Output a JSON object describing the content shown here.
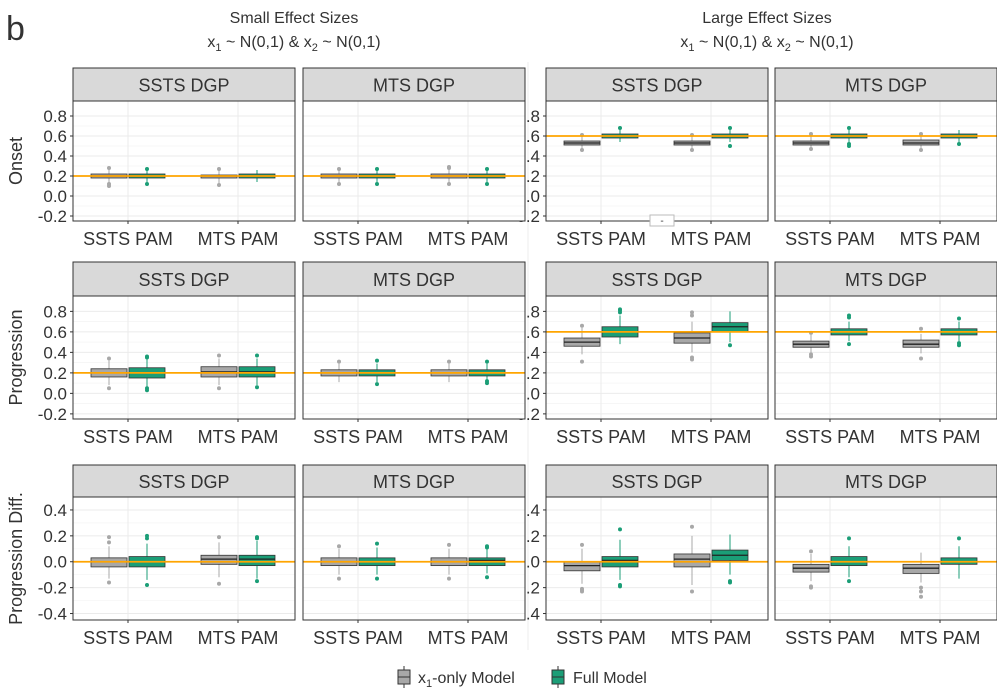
{
  "panel_letter": "b",
  "group_titles": [
    {
      "line1": "Small Effect Sizes",
      "x1": "x",
      "x1_sub": "1",
      "x1_tail": " ~ N(0,1) & ",
      "x2": "x",
      "x2_sub": "2",
      "x2_tail": " ~ N(0,1)"
    },
    {
      "line1": "Large Effect Sizes",
      "x1": "x",
      "x1_sub": "1",
      "x1_tail": " ~ N(0,1) & ",
      "x2": "x",
      "x2_sub": "2",
      "x2_tail": " ~ N(0,1)"
    }
  ],
  "legend": {
    "items": [
      {
        "label_main": "x",
        "label_sub": "1",
        "label_tail": "-only Model",
        "color": "#a8a8a8"
      },
      {
        "label_main": "Full Model",
        "label_sub": "",
        "label_tail": "",
        "color": "#1b9e77"
      }
    ]
  },
  "stray_mark": "-",
  "colors": {
    "x1_only": "#a8a8a8",
    "full": "#1b9e77",
    "reference": "#ffa500",
    "strip": "#d9d9d9"
  },
  "chart_data": {
    "type": "boxplot",
    "categories": [
      "SSTS PAM",
      "MTS PAM"
    ],
    "series": [
      "x1-only Model",
      "Full Model"
    ],
    "rows": [
      {
        "ylabel": "Onset",
        "ylim": [
          -0.25,
          0.95
        ],
        "ticks": [
          -0.2,
          0.0,
          0.2,
          0.4,
          0.6,
          0.8
        ]
      },
      {
        "ylabel": "Progression",
        "ylim": [
          -0.25,
          0.95
        ],
        "ticks": [
          -0.2,
          0.0,
          0.2,
          0.4,
          0.6,
          0.8
        ]
      },
      {
        "ylabel": "Progression Diff.",
        "ylim": [
          -0.45,
          0.5
        ],
        "ticks": [
          -0.4,
          -0.2,
          0.0,
          0.2,
          0.4
        ]
      }
    ],
    "tick_labels": {
      "Onset": [
        "-0.2",
        "0.0",
        "0.2",
        "0.4",
        "0.6",
        "0.8"
      ],
      "Progression": [
        "-0.2",
        "0.0",
        "0.2",
        "0.4",
        "0.6",
        "0.8"
      ],
      "Progression Diff.": [
        "-0.4",
        "-0.2",
        "0.0",
        "0.2",
        "0.4"
      ]
    },
    "panels": [
      {
        "row": 0,
        "col": 0,
        "strip": "SSTS DGP",
        "ref": 0.2,
        "boxes": [
          {
            "q1": 0.18,
            "med": 0.2,
            "q3": 0.22,
            "lo": 0.13,
            "hi": 0.27,
            "out": [
              0.1,
              0.28,
              0.12
            ]
          },
          {
            "q1": 0.18,
            "med": 0.2,
            "q3": 0.22,
            "lo": 0.14,
            "hi": 0.26,
            "out": [
              0.12,
              0.27
            ]
          },
          {
            "q1": 0.18,
            "med": 0.2,
            "q3": 0.21,
            "lo": 0.13,
            "hi": 0.26,
            "out": [
              0.11,
              0.27
            ]
          },
          {
            "q1": 0.18,
            "med": 0.2,
            "q3": 0.22,
            "lo": 0.14,
            "hi": 0.26,
            "out": []
          }
        ]
      },
      {
        "row": 0,
        "col": 1,
        "strip": "MTS DGP",
        "ref": 0.2,
        "boxes": [
          {
            "q1": 0.18,
            "med": 0.2,
            "q3": 0.22,
            "lo": 0.13,
            "hi": 0.26,
            "out": [
              0.12,
              0.27
            ]
          },
          {
            "q1": 0.18,
            "med": 0.2,
            "q3": 0.22,
            "lo": 0.14,
            "hi": 0.26,
            "out": [
              0.12,
              0.27
            ]
          },
          {
            "q1": 0.18,
            "med": 0.2,
            "q3": 0.22,
            "lo": 0.13,
            "hi": 0.27,
            "out": [
              0.12,
              0.28,
              0.29
            ]
          },
          {
            "q1": 0.18,
            "med": 0.2,
            "q3": 0.22,
            "lo": 0.14,
            "hi": 0.26,
            "out": [
              0.12,
              0.27
            ]
          }
        ]
      },
      {
        "row": 0,
        "col": 2,
        "strip": "SSTS DGP",
        "ref": 0.6,
        "boxes": [
          {
            "q1": 0.51,
            "med": 0.53,
            "q3": 0.55,
            "lo": 0.47,
            "hi": 0.6,
            "out": [
              0.46,
              0.61
            ]
          },
          {
            "q1": 0.58,
            "med": 0.6,
            "q3": 0.62,
            "lo": 0.54,
            "hi": 0.66,
            "out": [
              0.68
            ]
          },
          {
            "q1": 0.51,
            "med": 0.53,
            "q3": 0.55,
            "lo": 0.47,
            "hi": 0.6,
            "out": [
              0.46,
              0.61
            ]
          },
          {
            "q1": 0.58,
            "med": 0.6,
            "q3": 0.62,
            "lo": 0.54,
            "hi": 0.66,
            "out": [
              0.5,
              0.68
            ]
          }
        ]
      },
      {
        "row": 0,
        "col": 3,
        "strip": "MTS DGP",
        "ref": 0.6,
        "boxes": [
          {
            "q1": 0.51,
            "med": 0.53,
            "q3": 0.55,
            "lo": 0.47,
            "hi": 0.6,
            "out": [
              0.47,
              0.62
            ]
          },
          {
            "q1": 0.58,
            "med": 0.6,
            "q3": 0.62,
            "lo": 0.54,
            "hi": 0.66,
            "out": [
              0.52,
              0.5,
              0.68
            ]
          },
          {
            "q1": 0.51,
            "med": 0.53,
            "q3": 0.56,
            "lo": 0.47,
            "hi": 0.6,
            "out": [
              0.46,
              0.62
            ]
          },
          {
            "q1": 0.58,
            "med": 0.6,
            "q3": 0.62,
            "lo": 0.54,
            "hi": 0.66,
            "out": [
              0.52
            ]
          }
        ]
      },
      {
        "row": 1,
        "col": 0,
        "strip": "SSTS DGP",
        "ref": 0.2,
        "boxes": [
          {
            "q1": 0.16,
            "med": 0.2,
            "q3": 0.24,
            "lo": 0.08,
            "hi": 0.32,
            "out": [
              0.05,
              0.34
            ]
          },
          {
            "q1": 0.15,
            "med": 0.2,
            "q3": 0.25,
            "lo": 0.06,
            "hi": 0.33,
            "out": [
              0.03,
              0.05,
              0.35,
              0.36
            ]
          },
          {
            "q1": 0.16,
            "med": 0.21,
            "q3": 0.26,
            "lo": 0.08,
            "hi": 0.34,
            "out": [
              0.05,
              0.37
            ]
          },
          {
            "q1": 0.16,
            "med": 0.21,
            "q3": 0.26,
            "lo": 0.08,
            "hi": 0.34,
            "out": [
              0.06,
              0.37
            ]
          }
        ]
      },
      {
        "row": 1,
        "col": 1,
        "strip": "MTS DGP",
        "ref": 0.2,
        "boxes": [
          {
            "q1": 0.17,
            "med": 0.2,
            "q3": 0.23,
            "lo": 0.11,
            "hi": 0.29,
            "out": [
              0.31
            ]
          },
          {
            "q1": 0.17,
            "med": 0.2,
            "q3": 0.23,
            "lo": 0.11,
            "hi": 0.29,
            "out": [
              0.09,
              0.32
            ]
          },
          {
            "q1": 0.17,
            "med": 0.2,
            "q3": 0.23,
            "lo": 0.11,
            "hi": 0.29,
            "out": [
              0.31
            ]
          },
          {
            "q1": 0.17,
            "med": 0.2,
            "q3": 0.23,
            "lo": 0.11,
            "hi": 0.29,
            "out": [
              0.1,
              0.12,
              0.31
            ]
          }
        ]
      },
      {
        "row": 1,
        "col": 2,
        "strip": "SSTS DGP",
        "ref": 0.6,
        "boxes": [
          {
            "q1": 0.46,
            "med": 0.5,
            "q3": 0.54,
            "lo": 0.38,
            "hi": 0.64,
            "out": [
              0.31,
              0.66
            ]
          },
          {
            "q1": 0.55,
            "med": 0.6,
            "q3": 0.65,
            "lo": 0.48,
            "hi": 0.76,
            "out": [
              0.79,
              0.81,
              0.82
            ]
          },
          {
            "q1": 0.49,
            "med": 0.54,
            "q3": 0.59,
            "lo": 0.4,
            "hi": 0.7,
            "out": [
              0.33,
              0.35,
              0.76,
              0.79
            ]
          },
          {
            "q1": 0.6,
            "med": 0.65,
            "q3": 0.69,
            "lo": 0.5,
            "hi": 0.8,
            "out": [
              0.47
            ]
          }
        ]
      },
      {
        "row": 1,
        "col": 3,
        "strip": "MTS DGP",
        "ref": 0.6,
        "boxes": [
          {
            "q1": 0.45,
            "med": 0.48,
            "q3": 0.51,
            "lo": 0.4,
            "hi": 0.57,
            "out": [
              0.36,
              0.38,
              0.59
            ]
          },
          {
            "q1": 0.57,
            "med": 0.6,
            "q3": 0.63,
            "lo": 0.51,
            "hi": 0.7,
            "out": [
              0.48,
              0.74,
              0.76
            ]
          },
          {
            "q1": 0.45,
            "med": 0.48,
            "q3": 0.52,
            "lo": 0.39,
            "hi": 0.58,
            "out": [
              0.34,
              0.63
            ]
          },
          {
            "q1": 0.57,
            "med": 0.6,
            "q3": 0.63,
            "lo": 0.51,
            "hi": 0.7,
            "out": [
              0.47,
              0.49,
              0.73
            ]
          }
        ]
      },
      {
        "row": 2,
        "col": 0,
        "strip": "SSTS DGP",
        "ref": 0.0,
        "boxes": [
          {
            "q1": -0.04,
            "med": 0.0,
            "q3": 0.03,
            "lo": -0.13,
            "hi": 0.12,
            "out": [
              -0.16,
              0.15,
              0.19
            ]
          },
          {
            "q1": -0.04,
            "med": 0.0,
            "q3": 0.04,
            "lo": -0.14,
            "hi": 0.14,
            "out": [
              -0.18,
              0.18,
              0.2
            ]
          },
          {
            "q1": -0.02,
            "med": 0.02,
            "q3": 0.05,
            "lo": -0.12,
            "hi": 0.15,
            "out": [
              -0.17,
              0.19
            ]
          },
          {
            "q1": -0.03,
            "med": 0.02,
            "q3": 0.05,
            "lo": -0.13,
            "hi": 0.16,
            "out": [
              -0.15,
              0.18,
              0.19
            ]
          }
        ]
      },
      {
        "row": 2,
        "col": 1,
        "strip": "MTS DGP",
        "ref": 0.0,
        "boxes": [
          {
            "q1": -0.03,
            "med": 0.0,
            "q3": 0.03,
            "lo": -0.1,
            "hi": 0.1,
            "out": [
              -0.13,
              0.12
            ]
          },
          {
            "q1": -0.03,
            "med": 0.0,
            "q3": 0.03,
            "lo": -0.1,
            "hi": 0.11,
            "out": [
              -0.13,
              0.14
            ]
          },
          {
            "q1": -0.03,
            "med": 0.0,
            "q3": 0.03,
            "lo": -0.1,
            "hi": 0.1,
            "out": [
              -0.13,
              0.13
            ]
          },
          {
            "q1": -0.03,
            "med": 0.01,
            "q3": 0.03,
            "lo": -0.09,
            "hi": 0.1,
            "out": [
              -0.12,
              0.11,
              0.12
            ]
          }
        ]
      },
      {
        "row": 2,
        "col": 2,
        "strip": "SSTS DGP",
        "ref": 0.0,
        "boxes": [
          {
            "q1": -0.07,
            "med": -0.03,
            "q3": 0.0,
            "lo": -0.17,
            "hi": 0.1,
            "out": [
              -0.21,
              -0.22,
              -0.23,
              0.13
            ]
          },
          {
            "q1": -0.04,
            "med": 0.01,
            "q3": 0.04,
            "lo": -0.14,
            "hi": 0.17,
            "out": [
              -0.18,
              -0.19,
              0.25
            ]
          },
          {
            "q1": -0.04,
            "med": 0.02,
            "q3": 0.06,
            "lo": -0.18,
            "hi": 0.2,
            "out": [
              -0.23,
              0.27
            ]
          },
          {
            "q1": 0.01,
            "med": 0.05,
            "q3": 0.09,
            "lo": -0.1,
            "hi": 0.21,
            "out": [
              -0.15,
              -0.16
            ]
          }
        ]
      },
      {
        "row": 2,
        "col": 3,
        "strip": "MTS DGP",
        "ref": 0.0,
        "boxes": [
          {
            "q1": -0.08,
            "med": -0.05,
            "q3": -0.02,
            "lo": -0.15,
            "hi": 0.06,
            "out": [
              -0.19,
              -0.2,
              0.08
            ]
          },
          {
            "q1": -0.03,
            "med": 0.0,
            "q3": 0.04,
            "lo": -0.12,
            "hi": 0.12,
            "out": [
              -0.15,
              0.18
            ]
          },
          {
            "q1": -0.09,
            "med": -0.05,
            "q3": -0.02,
            "lo": -0.16,
            "hi": 0.07,
            "out": [
              -0.2,
              -0.23,
              -0.27
            ]
          },
          {
            "q1": -0.02,
            "med": 0.0,
            "q3": 0.03,
            "lo": -0.13,
            "hi": 0.12,
            "out": [
              0.18
            ]
          }
        ]
      }
    ]
  }
}
